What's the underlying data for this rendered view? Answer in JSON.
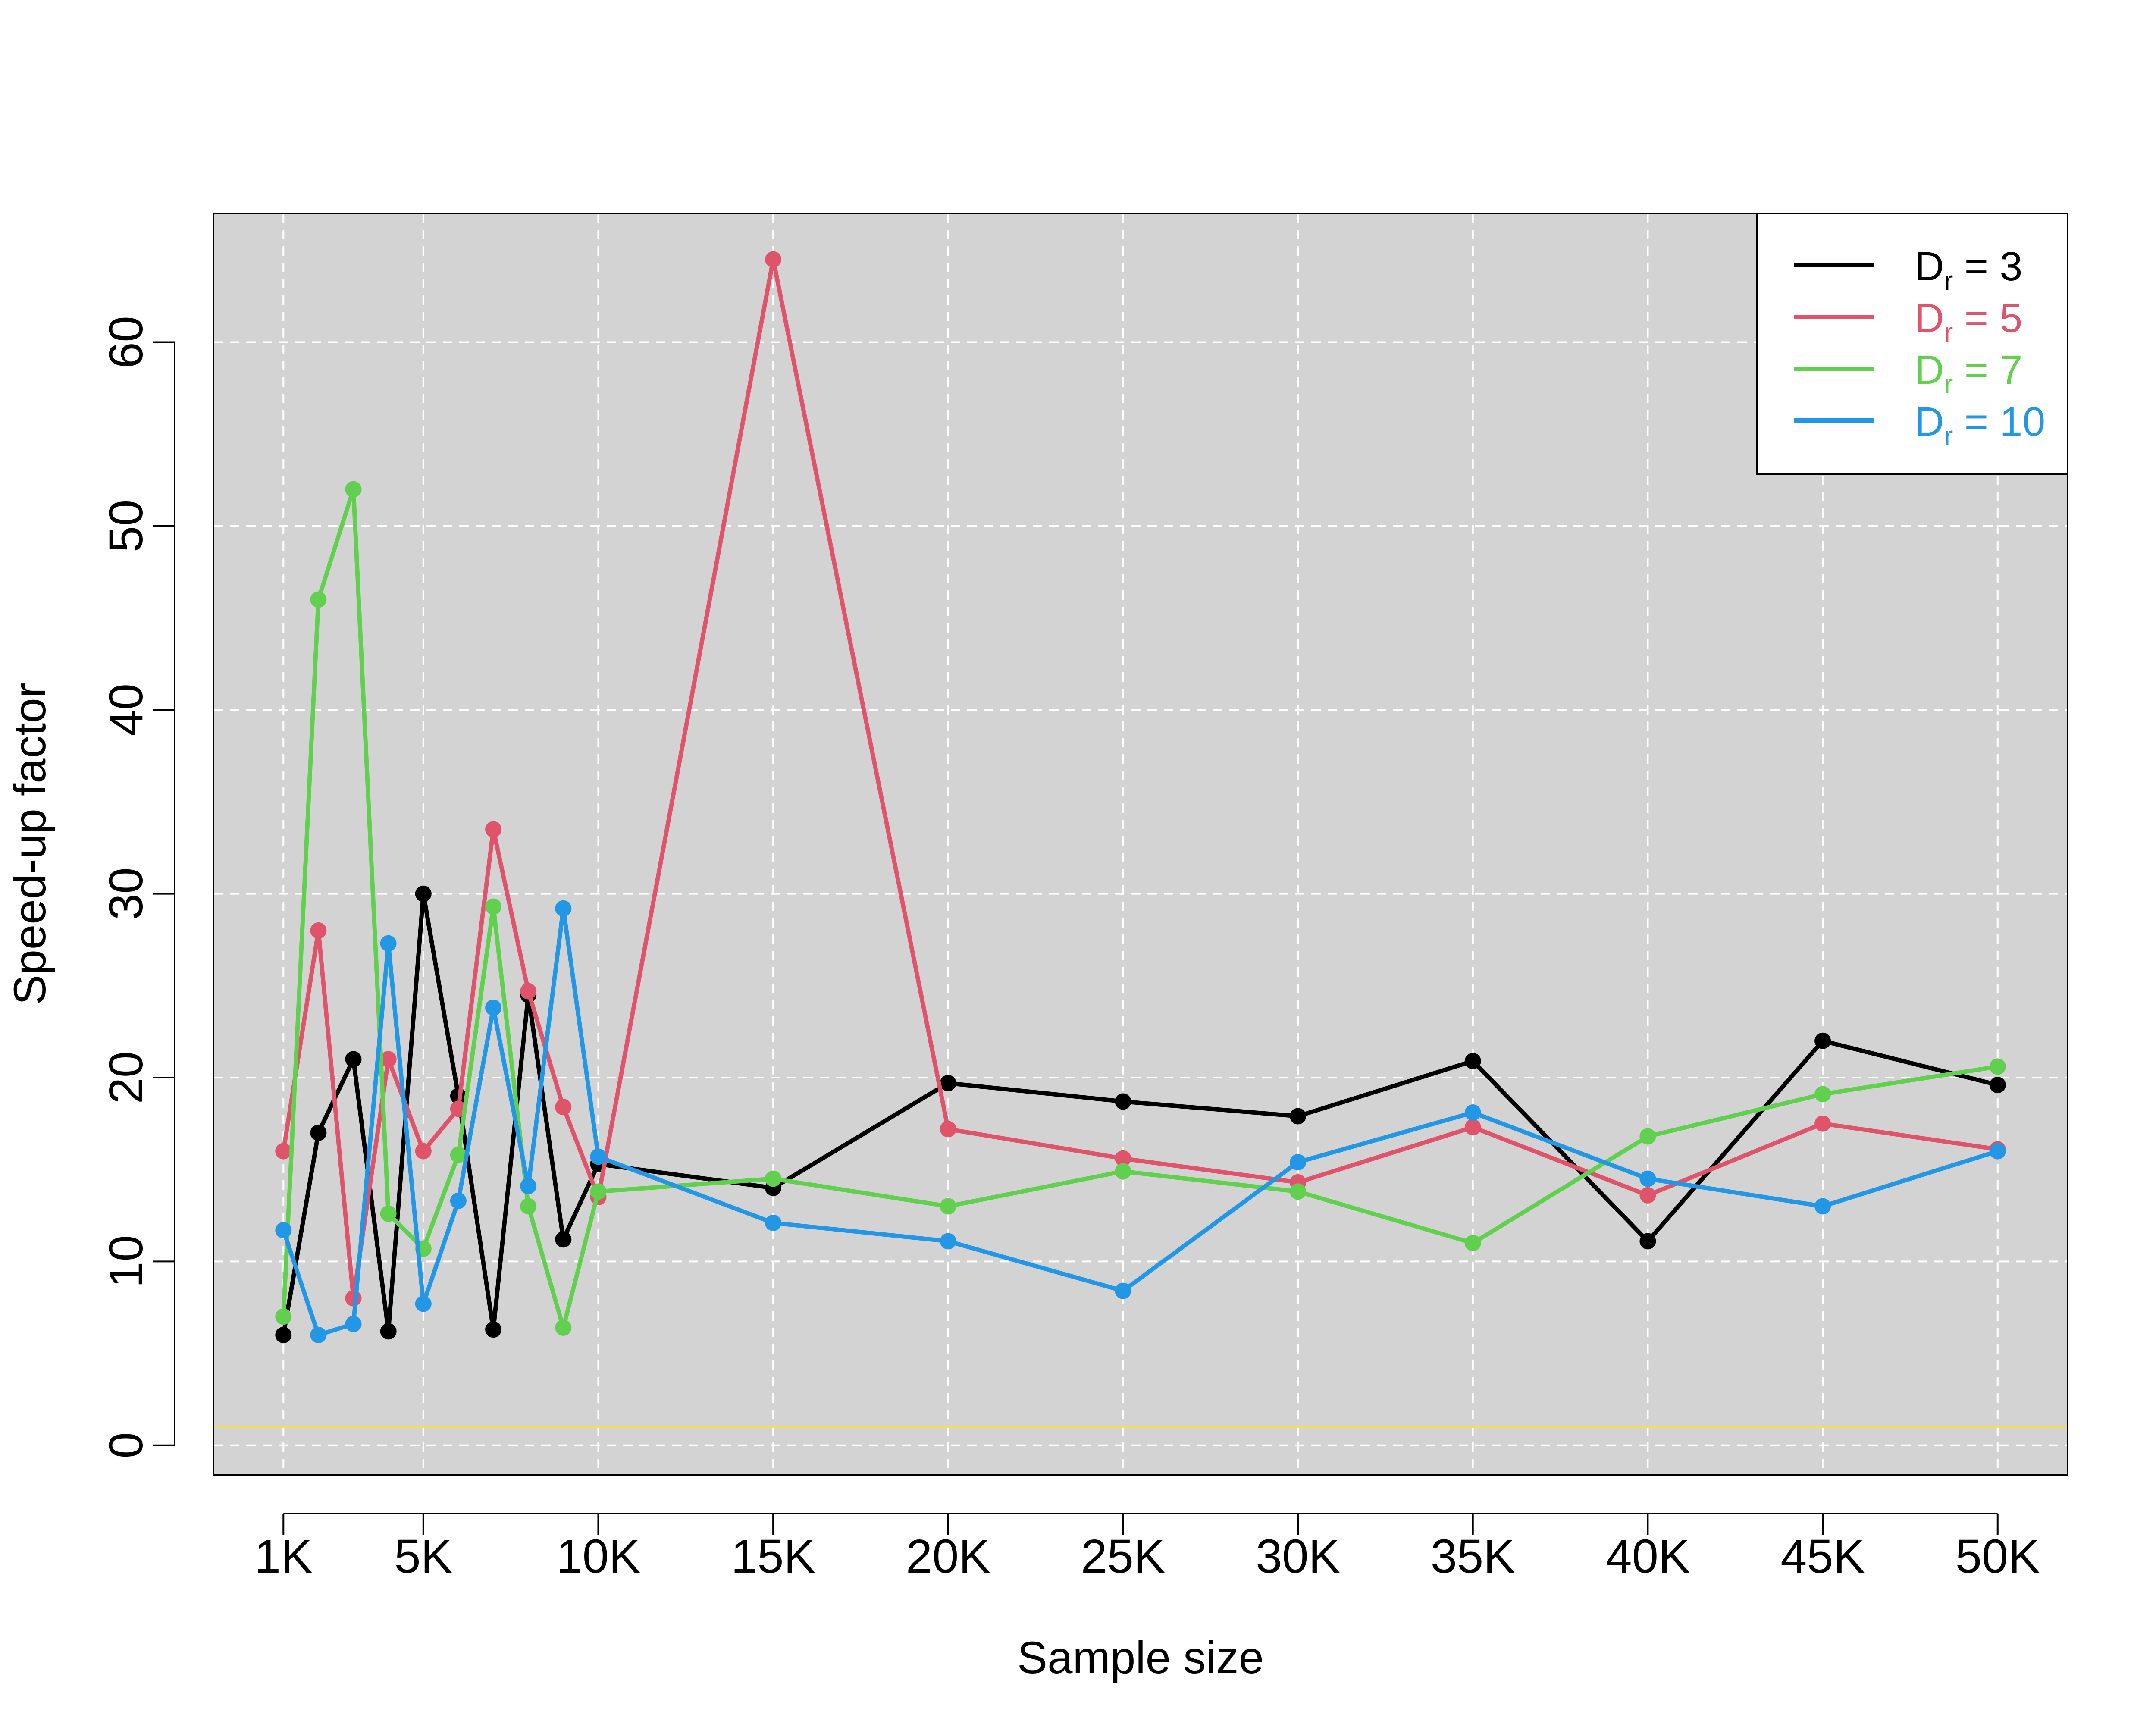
{
  "chart_data": {
    "type": "line",
    "title": "",
    "xlabel": "Sample size",
    "ylabel": "Speed-up factor",
    "x": [
      1000,
      2000,
      3000,
      4000,
      5000,
      6000,
      7000,
      8000,
      9000,
      10000,
      15000,
      20000,
      25000,
      30000,
      35000,
      40000,
      45000,
      50000
    ],
    "xticks": [
      1000,
      5000,
      10000,
      15000,
      20000,
      25000,
      30000,
      35000,
      40000,
      45000,
      50000
    ],
    "xtick_labels": [
      "1K",
      "5K",
      "10K",
      "15K",
      "20K",
      "25K",
      "30K",
      "35K",
      "40K",
      "45K",
      "50K"
    ],
    "yticks": [
      0,
      10,
      20,
      30,
      40,
      50,
      60
    ],
    "ytick_labels": [
      "0",
      "10",
      "20",
      "30",
      "40",
      "50",
      "60"
    ],
    "xlim": [
      -1000,
      52000
    ],
    "ylim": [
      -1.6,
      67
    ],
    "grid": true,
    "background": "#d3d3d3",
    "reference_line": {
      "y": 1,
      "color": "#f5dd5a"
    },
    "legend_position": "top-right",
    "series": [
      {
        "name": "D_r = 3",
        "label_main": "D",
        "label_sub": "r",
        "label_rest": " = 3",
        "color": "#000000",
        "values": [
          6,
          17,
          21,
          6.2,
          30,
          19,
          6.3,
          24.5,
          11.2,
          15.3,
          14,
          19.7,
          18.7,
          17.9,
          20.9,
          11.1,
          22,
          19.6
        ]
      },
      {
        "name": "D_r = 5",
        "label_main": "D",
        "label_sub": "r",
        "label_rest": " = 5",
        "color": "#df536b",
        "values": [
          16,
          28,
          8,
          21,
          16,
          18.3,
          33.5,
          24.7,
          18.4,
          13.5,
          64.5,
          17.2,
          15.6,
          14.3,
          17.3,
          13.6,
          17.5,
          16.1
        ]
      },
      {
        "name": "D_r = 7",
        "label_main": "D",
        "label_sub": "r",
        "label_rest": " = 7",
        "color": "#61d04f",
        "values": [
          7,
          46,
          52,
          12.6,
          10.7,
          15.8,
          29.3,
          13,
          6.4,
          13.8,
          14.5,
          13,
          14.9,
          13.8,
          11,
          16.8,
          19.1,
          20.6
        ]
      },
      {
        "name": "D_r = 10",
        "label_main": "D",
        "label_sub": "r",
        "label_rest": " = 10",
        "color": "#2297e6",
        "values": [
          11.7,
          6,
          6.6,
          27.3,
          7.7,
          13.3,
          23.8,
          14.1,
          29.2,
          15.7,
          12.1,
          11.1,
          8.4,
          15.4,
          18.1,
          14.5,
          13,
          16
        ]
      }
    ]
  }
}
